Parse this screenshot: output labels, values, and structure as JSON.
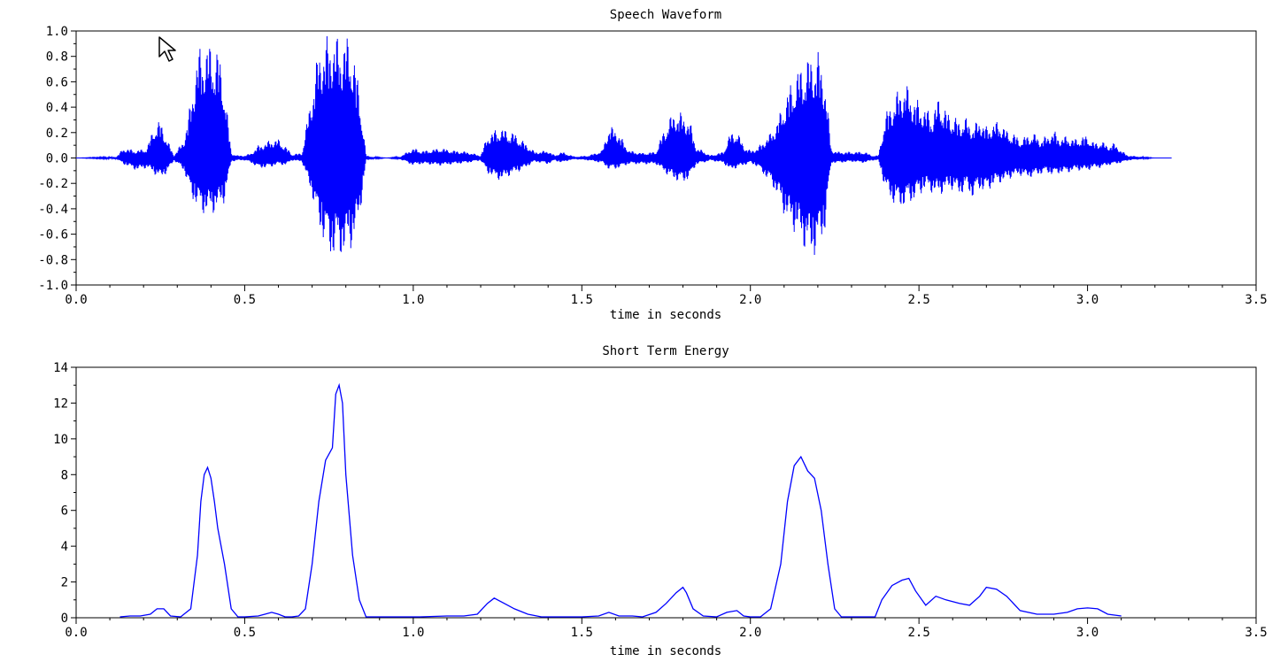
{
  "colors": {
    "series": "#0000ff",
    "axes": "#000000",
    "background": "#ffffff"
  },
  "cursor": {
    "icon": "mouse-pointer-icon"
  },
  "chart_data": [
    {
      "type": "line",
      "title": "Speech Waveform",
      "xlabel": "time in seconds",
      "ylabel": "",
      "xlim": [
        0.0,
        3.5
      ],
      "ylim": [
        -1.0,
        1.0
      ],
      "grid": false,
      "xticks": [
        "0.0",
        "0.5",
        "1.0",
        "1.5",
        "2.0",
        "2.5",
        "3.0",
        "3.5"
      ],
      "yticks": [
        "-1.0",
        "-0.8",
        "-0.6",
        "-0.4",
        "-0.2",
        "0.0",
        "0.2",
        "0.4",
        "0.6",
        "0.8",
        "1.0"
      ],
      "series": [
        {
          "color": "#0000ff",
          "envelope_x": [
            0.0,
            0.12,
            0.14,
            0.18,
            0.21,
            0.23,
            0.24,
            0.25,
            0.27,
            0.29,
            0.32,
            0.34,
            0.36,
            0.38,
            0.4,
            0.42,
            0.44,
            0.46,
            0.48,
            0.5,
            0.52,
            0.54,
            0.56,
            0.58,
            0.6,
            0.62,
            0.64,
            0.67,
            0.7,
            0.72,
            0.74,
            0.76,
            0.78,
            0.8,
            0.82,
            0.84,
            0.86,
            0.88,
            0.92,
            0.96,
            1.0,
            1.02,
            1.04,
            1.08,
            1.12,
            1.16,
            1.2,
            1.22,
            1.24,
            1.26,
            1.28,
            1.3,
            1.32,
            1.36,
            1.4,
            1.42,
            1.44,
            1.46,
            1.48,
            1.52,
            1.56,
            1.58,
            1.6,
            1.64,
            1.68,
            1.72,
            1.74,
            1.76,
            1.78,
            1.8,
            1.82,
            1.84,
            1.86,
            1.88,
            1.92,
            1.94,
            1.96,
            1.98,
            2.0,
            2.02,
            2.06,
            2.08,
            2.1,
            2.12,
            2.14,
            2.16,
            2.18,
            2.2,
            2.22,
            2.24,
            2.26,
            2.3,
            2.34,
            2.36,
            2.38,
            2.4,
            2.42,
            2.44,
            2.46,
            2.48,
            2.5,
            2.52,
            2.54,
            2.56,
            2.58,
            2.6,
            2.62,
            2.64,
            2.66,
            2.68,
            2.7,
            2.72,
            2.74,
            2.76,
            2.78,
            2.8,
            2.82,
            2.84,
            2.86,
            2.88,
            2.9,
            2.92,
            2.94,
            2.96,
            2.98,
            3.0,
            3.02,
            3.04,
            3.06,
            3.08,
            3.1,
            3.12,
            3.16,
            3.2,
            3.25
          ],
          "envelope_max": [
            0.0,
            0.01,
            0.08,
            0.06,
            0.08,
            0.25,
            0.28,
            0.3,
            0.15,
            0.02,
            0.15,
            0.45,
            0.85,
            0.92,
            0.9,
            0.88,
            0.6,
            0.04,
            0.02,
            0.02,
            0.04,
            0.1,
            0.12,
            0.15,
            0.15,
            0.1,
            0.03,
            0.04,
            0.55,
            0.88,
            0.95,
            1.0,
            0.95,
            0.98,
            0.9,
            0.55,
            0.02,
            0.01,
            0.0,
            0.01,
            0.08,
            0.06,
            0.06,
            0.08,
            0.06,
            0.05,
            0.02,
            0.18,
            0.22,
            0.24,
            0.22,
            0.2,
            0.15,
            0.05,
            0.06,
            0.02,
            0.05,
            0.03,
            0.01,
            0.02,
            0.06,
            0.25,
            0.24,
            0.06,
            0.04,
            0.05,
            0.2,
            0.32,
            0.38,
            0.35,
            0.3,
            0.08,
            0.06,
            0.02,
            0.05,
            0.2,
            0.22,
            0.1,
            0.06,
            0.08,
            0.2,
            0.3,
            0.45,
            0.6,
            0.7,
            0.77,
            0.82,
            0.85,
            0.68,
            0.07,
            0.05,
            0.05,
            0.05,
            0.02,
            0.02,
            0.35,
            0.45,
            0.55,
            0.6,
            0.5,
            0.45,
            0.4,
            0.35,
            0.5,
            0.38,
            0.34,
            0.3,
            0.32,
            0.25,
            0.32,
            0.25,
            0.28,
            0.3,
            0.22,
            0.2,
            0.15,
            0.18,
            0.2,
            0.15,
            0.18,
            0.22,
            0.16,
            0.18,
            0.15,
            0.17,
            0.18,
            0.12,
            0.14,
            0.1,
            0.12,
            0.06,
            0.02,
            0.01,
            0.0,
            0.0
          ],
          "envelope_min": [
            0.0,
            -0.01,
            -0.05,
            -0.1,
            -0.08,
            -0.12,
            -0.15,
            -0.16,
            -0.12,
            -0.02,
            -0.1,
            -0.3,
            -0.4,
            -0.45,
            -0.45,
            -0.42,
            -0.35,
            -0.03,
            -0.02,
            -0.02,
            -0.04,
            -0.08,
            -0.08,
            -0.07,
            -0.05,
            -0.06,
            -0.02,
            -0.03,
            -0.3,
            -0.55,
            -0.7,
            -0.8,
            -0.78,
            -0.78,
            -0.7,
            -0.5,
            -0.02,
            -0.01,
            0.0,
            -0.01,
            -0.06,
            -0.05,
            -0.05,
            -0.06,
            -0.05,
            -0.04,
            -0.02,
            -0.12,
            -0.16,
            -0.18,
            -0.15,
            -0.12,
            -0.1,
            -0.03,
            -0.05,
            -0.02,
            -0.04,
            -0.02,
            -0.01,
            -0.02,
            -0.04,
            -0.09,
            -0.09,
            -0.05,
            -0.05,
            -0.05,
            -0.1,
            -0.15,
            -0.18,
            -0.2,
            -0.16,
            -0.05,
            -0.04,
            -0.02,
            -0.04,
            -0.1,
            -0.08,
            -0.06,
            -0.04,
            -0.07,
            -0.2,
            -0.3,
            -0.45,
            -0.55,
            -0.62,
            -0.72,
            -0.8,
            -0.75,
            -0.6,
            -0.04,
            -0.04,
            -0.03,
            -0.04,
            -0.02,
            -0.02,
            -0.25,
            -0.35,
            -0.4,
            -0.38,
            -0.35,
            -0.3,
            -0.25,
            -0.28,
            -0.3,
            -0.26,
            -0.25,
            -0.3,
            -0.25,
            -0.32,
            -0.25,
            -0.28,
            -0.22,
            -0.2,
            -0.18,
            -0.15,
            -0.14,
            -0.16,
            -0.15,
            -0.13,
            -0.12,
            -0.14,
            -0.12,
            -0.12,
            -0.1,
            -0.1,
            -0.1,
            -0.08,
            -0.08,
            -0.06,
            -0.05,
            -0.04,
            -0.02,
            -0.01,
            0.0,
            0.0
          ]
        }
      ]
    },
    {
      "type": "line",
      "title": "Short Term Energy",
      "xlabel": "time in seconds",
      "ylabel": "",
      "xlim": [
        0.0,
        3.5
      ],
      "ylim": [
        0,
        14
      ],
      "grid": false,
      "xticks": [
        "0.0",
        "0.5",
        "1.0",
        "1.5",
        "2.0",
        "2.5",
        "3.0",
        "3.5"
      ],
      "yticks": [
        "0",
        "2",
        "4",
        "6",
        "8",
        "10",
        "12",
        "14"
      ],
      "series": [
        {
          "color": "#0000ff",
          "x": [
            0.13,
            0.16,
            0.19,
            0.22,
            0.24,
            0.26,
            0.28,
            0.31,
            0.34,
            0.36,
            0.37,
            0.38,
            0.39,
            0.4,
            0.41,
            0.42,
            0.44,
            0.46,
            0.48,
            0.5,
            0.54,
            0.56,
            0.58,
            0.6,
            0.62,
            0.64,
            0.66,
            0.68,
            0.7,
            0.72,
            0.74,
            0.76,
            0.77,
            0.78,
            0.79,
            0.8,
            0.82,
            0.84,
            0.86,
            1.02,
            1.1,
            1.15,
            1.19,
            1.22,
            1.24,
            1.27,
            1.3,
            1.34,
            1.38,
            1.42,
            1.5,
            1.55,
            1.58,
            1.61,
            1.65,
            1.68,
            1.72,
            1.75,
            1.78,
            1.8,
            1.81,
            1.83,
            1.86,
            1.9,
            1.93,
            1.96,
            1.98,
            2.0,
            2.03,
            2.06,
            2.09,
            2.11,
            2.13,
            2.15,
            2.17,
            2.19,
            2.21,
            2.23,
            2.25,
            2.27,
            2.3,
            2.35,
            2.37,
            2.39,
            2.42,
            2.45,
            2.47,
            2.49,
            2.52,
            2.55,
            2.58,
            2.62,
            2.65,
            2.68,
            2.7,
            2.73,
            2.76,
            2.8,
            2.85,
            2.9,
            2.94,
            2.97,
            3.0,
            3.03,
            3.06,
            3.1
          ],
          "y": [
            0.05,
            0.1,
            0.1,
            0.2,
            0.5,
            0.5,
            0.1,
            0.05,
            0.5,
            3.5,
            6.5,
            8.0,
            8.4,
            7.8,
            6.5,
            5.0,
            3.0,
            0.5,
            0.05,
            0.05,
            0.1,
            0.2,
            0.3,
            0.2,
            0.05,
            0.05,
            0.1,
            0.5,
            3.0,
            6.5,
            8.8,
            9.5,
            12.5,
            13.0,
            12.0,
            8.0,
            3.5,
            1.0,
            0.05,
            0.05,
            0.1,
            0.1,
            0.2,
            0.8,
            1.1,
            0.8,
            0.5,
            0.2,
            0.05,
            0.05,
            0.05,
            0.1,
            0.3,
            0.1,
            0.1,
            0.05,
            0.3,
            0.8,
            1.4,
            1.7,
            1.4,
            0.5,
            0.1,
            0.05,
            0.3,
            0.4,
            0.1,
            0.05,
            0.05,
            0.5,
            3.0,
            6.5,
            8.5,
            9.0,
            8.2,
            7.8,
            6.0,
            3.0,
            0.5,
            0.05,
            0.05,
            0.05,
            0.05,
            1.0,
            1.8,
            2.1,
            2.2,
            1.5,
            0.7,
            1.2,
            1.0,
            0.8,
            0.7,
            1.2,
            1.7,
            1.6,
            1.2,
            0.4,
            0.2,
            0.2,
            0.3,
            0.5,
            0.55,
            0.5,
            0.2,
            0.1
          ]
        }
      ]
    }
  ]
}
